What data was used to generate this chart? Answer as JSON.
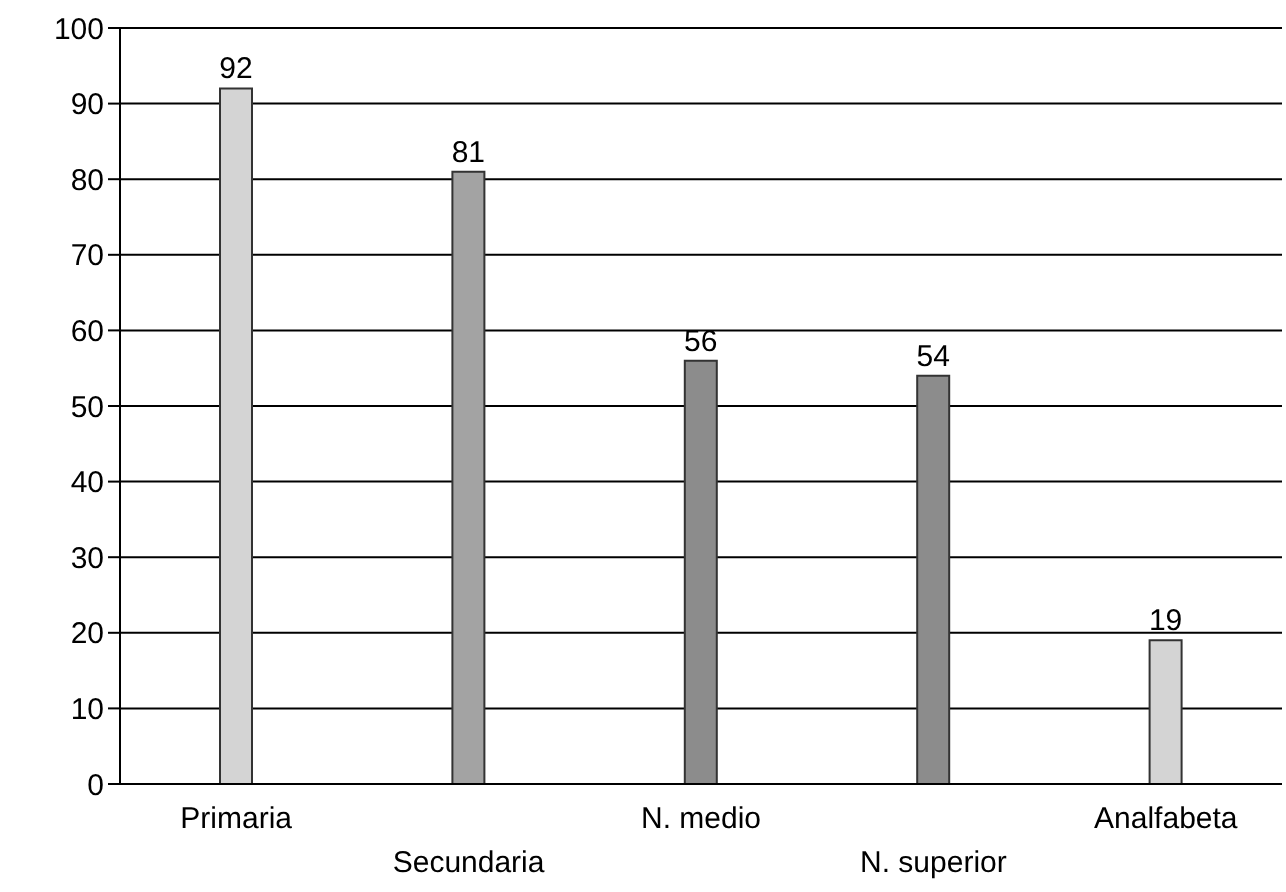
{
  "chart_data": {
    "type": "bar",
    "categories": [
      "Primaria",
      "Secundaria",
      "N. medio",
      "N. superior",
      "Analfabeta"
    ],
    "values": [
      92,
      81,
      56,
      54,
      19
    ],
    "colors": [
      "#d4d4d4",
      "#a3a3a3",
      "#8c8c8c",
      "#8c8c8c",
      "#d4d4d4"
    ],
    "ylim": [
      0,
      100
    ],
    "yticks": [
      0,
      10,
      20,
      30,
      40,
      50,
      60,
      70,
      80,
      90,
      100
    ],
    "grid": "y",
    "data_labels": true
  }
}
